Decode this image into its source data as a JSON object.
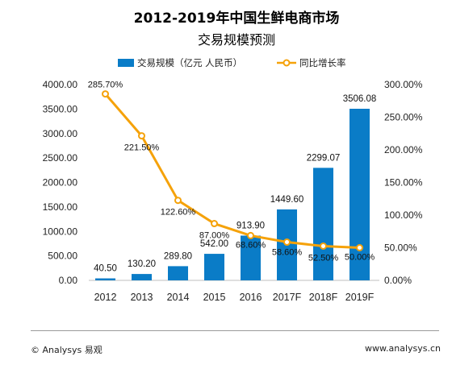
{
  "header": {
    "title_line1": "2012-2019年中国生鲜电商市场",
    "title_line2": "交易规模预测"
  },
  "footer": {
    "copyright": "© Analysys 易观",
    "url": "www.analysys.cn"
  },
  "colors": {
    "bar": "#0a7cc7",
    "line": "#f5a20a",
    "marker_fill": "#ffffff",
    "axis_text": "#222222",
    "grid": "#d9d9d9"
  },
  "chart_data": {
    "type": "bar",
    "title": "2012-2019年中国生鲜电商市场 交易规模预测",
    "categories": [
      "2012",
      "2013",
      "2014",
      "2015",
      "2016",
      "2017F",
      "2018F",
      "2019F"
    ],
    "series": [
      {
        "name": "交易规模（亿元 人民币）",
        "type": "bar",
        "axis": "left",
        "values": [
          40.5,
          130.2,
          289.8,
          542.0,
          913.9,
          1449.6,
          2299.07,
          3506.08
        ],
        "labels": [
          "40.50",
          "130.20",
          "289.80",
          "542.00",
          "913.90",
          "1449.60",
          "2299.07",
          "3506.08"
        ]
      },
      {
        "name": "同比增长率",
        "type": "line",
        "axis": "right",
        "values": [
          285.7,
          221.5,
          122.6,
          87.0,
          68.6,
          58.6,
          52.5,
          50.0
        ],
        "labels": [
          "285.70%",
          "221.50%",
          "122.60%",
          "87.00%",
          "68.60%",
          "58.60%",
          "52.50%",
          "50.00%"
        ]
      }
    ],
    "y_left": {
      "ylim": [
        0,
        4000
      ],
      "ticks": [
        "0.00",
        "500.00",
        "1000.00",
        "1500.00",
        "2000.00",
        "2500.00",
        "3000.00",
        "3500.00",
        "4000.00"
      ],
      "tick_values": [
        0,
        500,
        1000,
        1500,
        2000,
        2500,
        3000,
        3500,
        4000
      ]
    },
    "y_right": {
      "ylim": [
        0,
        300
      ],
      "ticks": [
        "0.00%",
        "50.00%",
        "100.00%",
        "150.00%",
        "200.00%",
        "250.00%",
        "300.00%"
      ],
      "tick_values": [
        0,
        50,
        100,
        150,
        200,
        250,
        300
      ]
    },
    "legend_position": "top",
    "grid": false
  }
}
